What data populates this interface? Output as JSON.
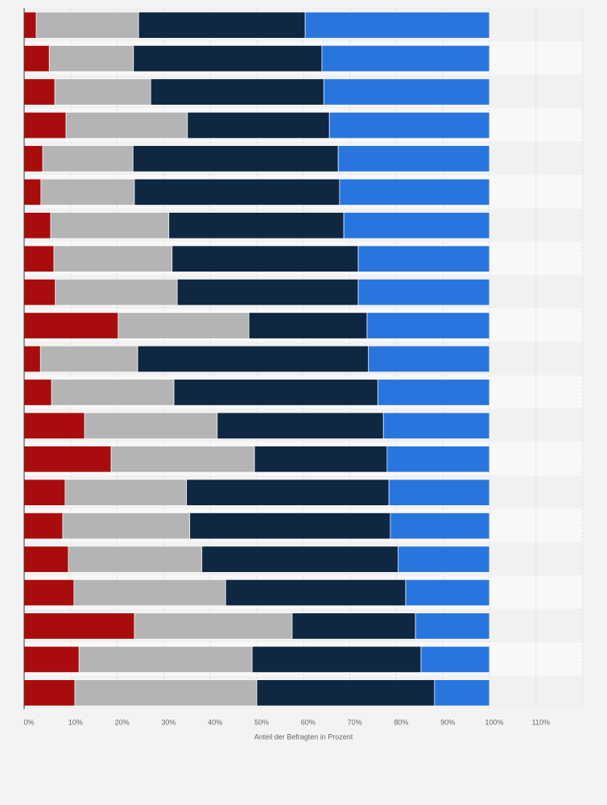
{
  "chart_data": {
    "type": "stacked-bar-horizontal",
    "x_label": "Anteil der Befragten in Prozent",
    "categories": [
      null,
      null,
      null,
      null,
      null,
      null,
      null,
      null,
      null,
      null,
      null,
      null,
      null,
      null,
      null,
      null,
      null,
      null,
      null,
      null,
      null
    ],
    "series": [
      {
        "color": "#a90c0c",
        "values": [
          2.6,
          5.4,
          6.6,
          9.0,
          4.0,
          3.6,
          5.7,
          6.4,
          6.7,
          20.2,
          3.5,
          5.9,
          13.0,
          18.7,
          8.8,
          8.3,
          9.5,
          10.7,
          23.7,
          11.8,
          10.9
        ]
      },
      {
        "color": "#b4b4b4",
        "values": [
          22.0,
          18.1,
          20.6,
          26.1,
          19.4,
          20.1,
          25.4,
          25.4,
          26.2,
          28.1,
          20.9,
          26.3,
          28.5,
          30.8,
          26.1,
          27.3,
          28.7,
          32.6,
          33.9,
          37.2,
          39.1
        ]
      },
      {
        "color": "#0f2741",
        "values": [
          35.8,
          40.5,
          37.2,
          30.5,
          44.1,
          44.1,
          37.6,
          40.0,
          38.9,
          25.4,
          49.6,
          43.8,
          35.7,
          28.5,
          43.5,
          43.1,
          42.2,
          38.7,
          26.5,
          36.3,
          38.2
        ]
      },
      {
        "color": "#2876dd",
        "values": [
          39.6,
          36.0,
          35.6,
          34.4,
          32.5,
          32.2,
          31.3,
          28.2,
          28.2,
          26.3,
          26.0,
          24.0,
          22.8,
          22.0,
          21.6,
          21.3,
          19.6,
          18.0,
          15.9,
          14.7,
          11.8
        ]
      }
    ],
    "xlim": [
      0,
      120
    ],
    "xticks": [
      {
        "value": 0,
        "label": "0%"
      },
      {
        "value": 10,
        "label": "10%"
      },
      {
        "value": 20,
        "label": "20%"
      },
      {
        "value": 30,
        "label": "30%"
      },
      {
        "value": 40,
        "label": "40%"
      },
      {
        "value": 50,
        "label": "50%"
      },
      {
        "value": 60,
        "label": "60%"
      },
      {
        "value": 70,
        "label": "70%"
      },
      {
        "value": 80,
        "label": "80%"
      },
      {
        "value": 90,
        "label": "90%"
      },
      {
        "value": 100,
        "label": "100%"
      },
      {
        "value": 110,
        "label": "110%"
      }
    ],
    "grid": true
  }
}
